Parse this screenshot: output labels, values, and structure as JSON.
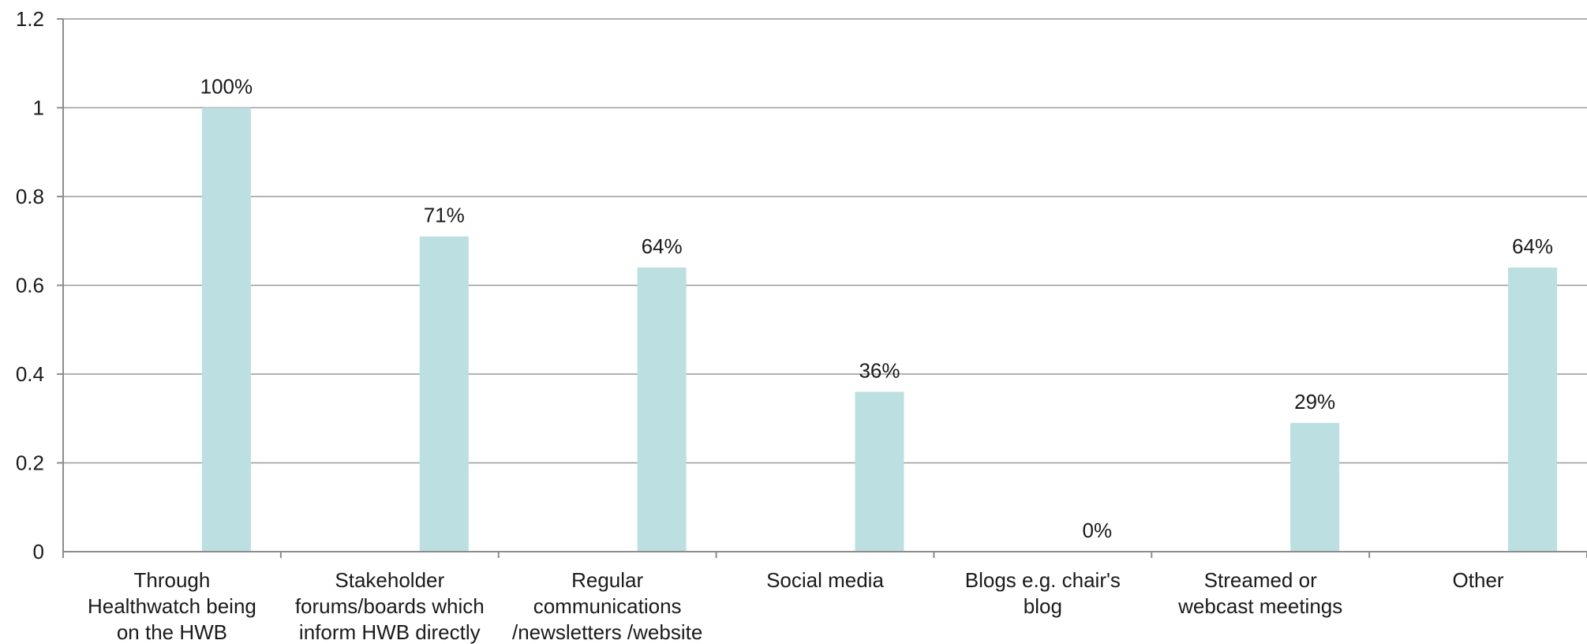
{
  "chart_data": {
    "type": "bar",
    "categories": [
      [
        "Through",
        "Healthwatch being",
        "on the HWB"
      ],
      [
        "Stakeholder",
        "forums/boards which",
        "inform HWB directly"
      ],
      [
        "Regular",
        "communications",
        "/newsletters /website"
      ],
      [
        "Social media"
      ],
      [
        "Blogs e.g. chair's",
        "blog"
      ],
      [
        "Streamed or",
        "webcast meetings"
      ],
      [
        "Other"
      ]
    ],
    "values": [
      1.0,
      0.71,
      0.64,
      0.36,
      0.0,
      0.29,
      0.64
    ],
    "data_labels": [
      "100%",
      "71%",
      "64%",
      "36%",
      "0%",
      "29%",
      "64%"
    ],
    "y_ticks": [
      "0",
      "0.2",
      "0.4",
      "0.6",
      "0.8",
      "1",
      "1.2"
    ],
    "ylim": [
      0,
      1.2
    ],
    "grid": true,
    "bar_color": "#bcdfe1",
    "gridline_color": "#9a9a9a",
    "axis_color": "#8c8c8c"
  }
}
